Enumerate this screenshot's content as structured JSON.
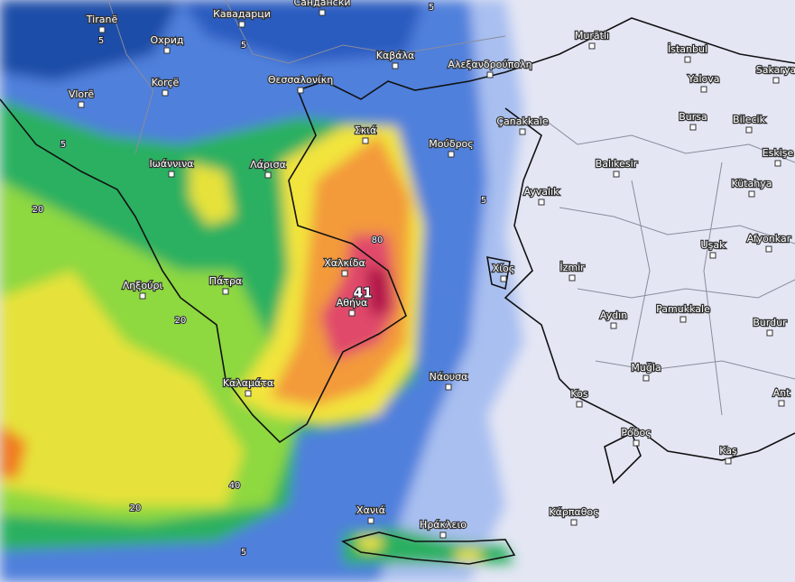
{
  "cities": [
    "Tiranë",
    "Охрид",
    "Кавадарци",
    "Сандански",
    "Korçë",
    "Vlorë",
    "Θεσσαλονίκη",
    "Καβάλα",
    "Αλεξανδρούπολη",
    "Murātlı",
    "İstanbul",
    "Sakarya",
    "Yalova",
    "Bursa",
    "Bilecik",
    "Eskişe",
    "Çanakkale",
    "Σκιά",
    "Μούδρος",
    "Ιωάννινα",
    "Λάρισα",
    "Balıkesir",
    "Kütahya",
    "Ayvalık",
    "Afyonkar",
    "Uşak",
    "Χαλκίδα",
    "İzmir",
    "Χίος",
    "Ληξούρι",
    "Πάτρα",
    "Αθήνα",
    "Aydın",
    "Pamukkale",
    "Burdur",
    "Νάουσα",
    "Muğla",
    "Καλαμάτα",
    "Kos",
    "Ant",
    "Ρόδος",
    "Kaş",
    "Χανιά",
    "Ηράκλειο",
    "Κάρπαθος"
  ],
  "contour_labels": [
    5,
    5,
    5,
    5,
    5,
    20,
    20,
    40,
    20,
    5,
    80,
    41
  ]
}
